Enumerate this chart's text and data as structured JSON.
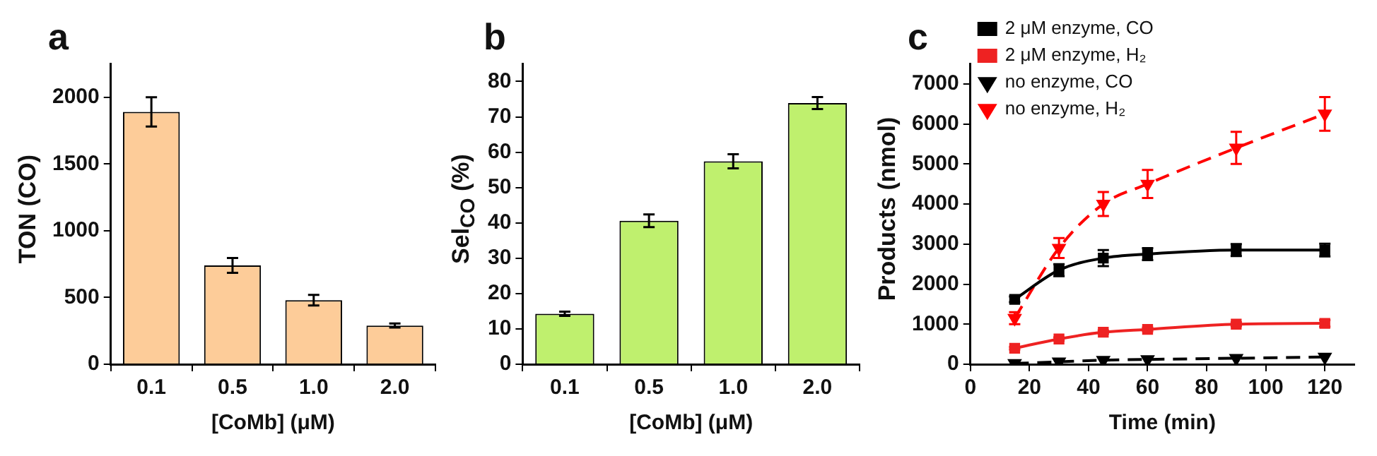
{
  "chart_data": [
    {
      "type": "bar",
      "title": "a",
      "xlabel": "[CoMb] (μM)",
      "ylabel": "TON (CO)",
      "categories": [
        "0.1",
        "0.5",
        "1.0",
        "2.0"
      ],
      "values": [
        1890,
        740,
        480,
        290
      ],
      "errors": [
        110,
        55,
        40,
        15
      ],
      "color": "#fdcc99",
      "ylim": [
        0,
        2250
      ],
      "yticks": [
        0,
        500,
        1000,
        1500,
        2000
      ],
      "grid": false
    },
    {
      "type": "bar",
      "title": "b",
      "xlabel": "[CoMb] (μM)",
      "ylabel": "Sel$_{CO}$ (%)",
      "categories": [
        "0.1",
        "0.5",
        "1.0",
        "2.0"
      ],
      "values": [
        14.3,
        40.6,
        57.4,
        73.9
      ],
      "errors": [
        0.6,
        1.8,
        2,
        1.7
      ],
      "color": "#bff06e",
      "ylim": [
        0,
        85
      ],
      "yticks": [
        0,
        10,
        20,
        30,
        40,
        50,
        60,
        70,
        80
      ],
      "grid": false
    },
    {
      "type": "line",
      "title": "c",
      "xlabel": "Time (min)",
      "ylabel": "Products (nmol)",
      "x": [
        15,
        30,
        45,
        60,
        90,
        120
      ],
      "series": [
        {
          "name": "2 μM enzyme, CO",
          "color": "#000000",
          "marker": "square",
          "line_style": "solid",
          "values": [
            1620,
            2350,
            2650,
            2750,
            2850,
            2850
          ],
          "errors": [
            70,
            150,
            200,
            150,
            150,
            160
          ]
        },
        {
          "name": "2 μM enzyme, H₂",
          "color": "#ee2222",
          "marker": "square",
          "line_style": "solid",
          "values": [
            400,
            630,
            800,
            870,
            1000,
            1020
          ],
          "errors": [
            30,
            40,
            40,
            40,
            50,
            80
          ]
        },
        {
          "name": "no enzyme, CO",
          "color": "#000000",
          "marker": "triangle",
          "line_style": "dashed",
          "values": [
            20,
            60,
            100,
            120,
            150,
            180
          ],
          "errors": [
            null,
            null,
            null,
            null,
            null,
            null
          ]
        },
        {
          "name": "no enzyme, H₂",
          "color": "#ff0000",
          "marker": "triangle",
          "line_style": "dashed",
          "values": [
            1150,
            2900,
            4000,
            4500,
            5400,
            6250
          ],
          "errors": [
            150,
            250,
            300,
            350,
            400,
            420
          ]
        }
      ],
      "xlim": [
        0,
        130
      ],
      "xticks": [
        0,
        20,
        40,
        60,
        80,
        100,
        120
      ],
      "ylim": [
        0,
        7500
      ],
      "yticks": [
        0,
        1000,
        2000,
        3000,
        4000,
        5000,
        6000,
        7000
      ],
      "grid": false,
      "legend": "top left"
    }
  ]
}
